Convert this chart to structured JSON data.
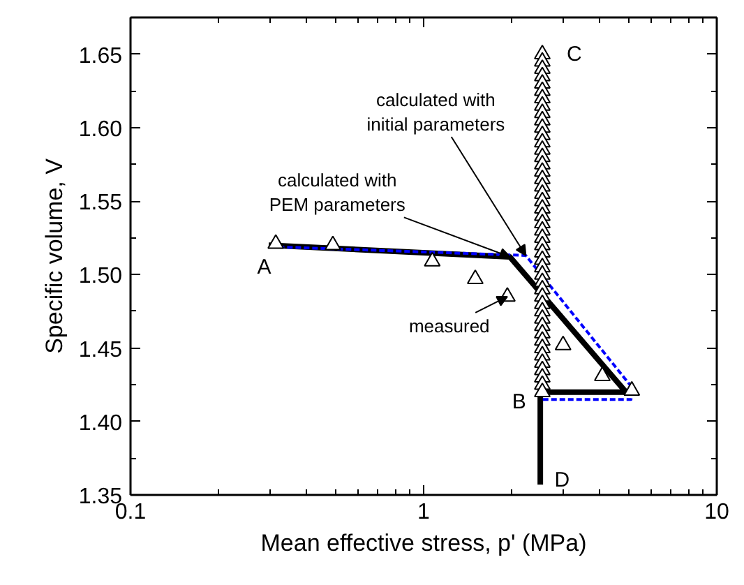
{
  "chart_data": {
    "type": "line",
    "xlabel": "Mean effective stress, p' (MPa)",
    "ylabel": "Specific volume, V",
    "log": "x",
    "grid": false,
    "xlim": [
      0.1,
      10
    ],
    "ylim": [
      1.35,
      1.675
    ],
    "xticks": [
      {
        "value": 0.1,
        "label": "0.1"
      },
      {
        "value": 0.2,
        "label": null
      },
      {
        "value": 0.3,
        "label": null
      },
      {
        "value": 0.4,
        "label": null
      },
      {
        "value": 0.5,
        "label": null
      },
      {
        "value": 0.6,
        "label": null
      },
      {
        "value": 0.7,
        "label": null
      },
      {
        "value": 0.8,
        "label": null
      },
      {
        "value": 0.9,
        "label": null
      },
      1,
      {
        "value": 2,
        "label": null
      },
      {
        "value": 3,
        "label": null
      },
      {
        "value": 4,
        "label": null
      },
      {
        "value": 5,
        "label": null
      },
      {
        "value": 6,
        "label": null
      },
      {
        "value": 7,
        "label": null
      },
      {
        "value": 8,
        "label": null
      },
      {
        "value": 9,
        "label": null
      },
      10
    ],
    "yticks": [
      1.35,
      {
        "value": 1.375,
        "label": null
      },
      {
        "value": 1.4,
        "label": "1.40"
      },
      {
        "value": 1.425,
        "label": null
      },
      1.45,
      {
        "value": 1.475,
        "label": null
      },
      {
        "value": 1.5,
        "label": "1.50"
      },
      {
        "value": 1.525,
        "label": null
      },
      1.55,
      {
        "value": 1.575,
        "label": null
      },
      {
        "value": 1.6,
        "label": "1.60"
      },
      {
        "value": 1.625,
        "label": null
      },
      1.65
    ],
    "series": [
      {
        "color": "#000000",
        "line_style": "solid",
        "x": [
          0.296,
          1.97,
          4.9,
          2.5,
          2.5
        ],
        "values": [
          1.52,
          1.512,
          1.42,
          1.42,
          1.357
        ]
      },
      {
        "color": "#0000ff",
        "line_style": "dashed",
        "x": [
          0.3,
          2.23,
          5.1,
          5.1,
          2.55
        ],
        "values": [
          1.519,
          1.513,
          1.424,
          1.415,
          1.415
        ]
      },
      {
        "type": "scatter",
        "color": "#000000",
        "marker": "triangle",
        "x": [
          0.313,
          0.49,
          1.07,
          1.5,
          1.93,
          2.99,
          4.07,
          5.13
        ],
        "values": [
          1.521,
          1.52,
          1.509,
          1.497,
          1.485,
          1.452,
          1.431,
          1.421
        ]
      },
      {
        "type": "scatter",
        "color": "#000000",
        "marker": "triangle",
        "x": [
          2.54,
          2.54,
          2.54,
          2.54,
          2.54,
          2.54,
          2.54,
          2.54,
          2.54,
          2.54,
          2.54,
          2.54,
          2.54,
          2.54,
          2.54,
          2.54,
          2.54,
          2.54,
          2.54,
          2.54,
          2.54,
          2.54,
          2.54,
          2.54,
          2.54,
          2.54,
          2.54,
          2.54,
          2.54,
          2.54,
          2.54,
          2.54,
          2.54,
          2.54,
          2.54,
          2.54,
          2.54,
          2.54,
          2.54,
          2.54,
          2.54,
          2.54,
          2.54,
          2.54,
          2.54,
          2.54,
          2.54
        ],
        "values": [
          1.65,
          1.645,
          1.64,
          1.635,
          1.63,
          1.625,
          1.62,
          1.615,
          1.61,
          1.605,
          1.6,
          1.595,
          1.59,
          1.585,
          1.58,
          1.575,
          1.57,
          1.565,
          1.56,
          1.555,
          1.55,
          1.545,
          1.54,
          1.535,
          1.53,
          1.525,
          1.52,
          1.515,
          1.51,
          1.505,
          1.5,
          1.495,
          1.49,
          1.485,
          1.48,
          1.475,
          1.47,
          1.465,
          1.46,
          1.455,
          1.45,
          1.445,
          1.44,
          1.435,
          1.43,
          1.425,
          1.42
        ]
      }
    ],
    "annotations": [
      {
        "text": "A",
        "x": 0.313,
        "y": 1.521
      },
      {
        "text": "B",
        "x": 2.54,
        "y": 1.42
      },
      {
        "text": "C",
        "x": 2.54,
        "y": 1.65
      },
      {
        "text": "D",
        "x": 2.5,
        "y": 1.357
      },
      {
        "text": "calculated with\ninitial parameters",
        "x": 2.23,
        "y": 1.513
      },
      {
        "text": "calculated with\nPEM parameters",
        "x": 1.97,
        "y": 1.512
      },
      {
        "text": "measured",
        "x": 1.93,
        "y": 1.485
      }
    ]
  }
}
